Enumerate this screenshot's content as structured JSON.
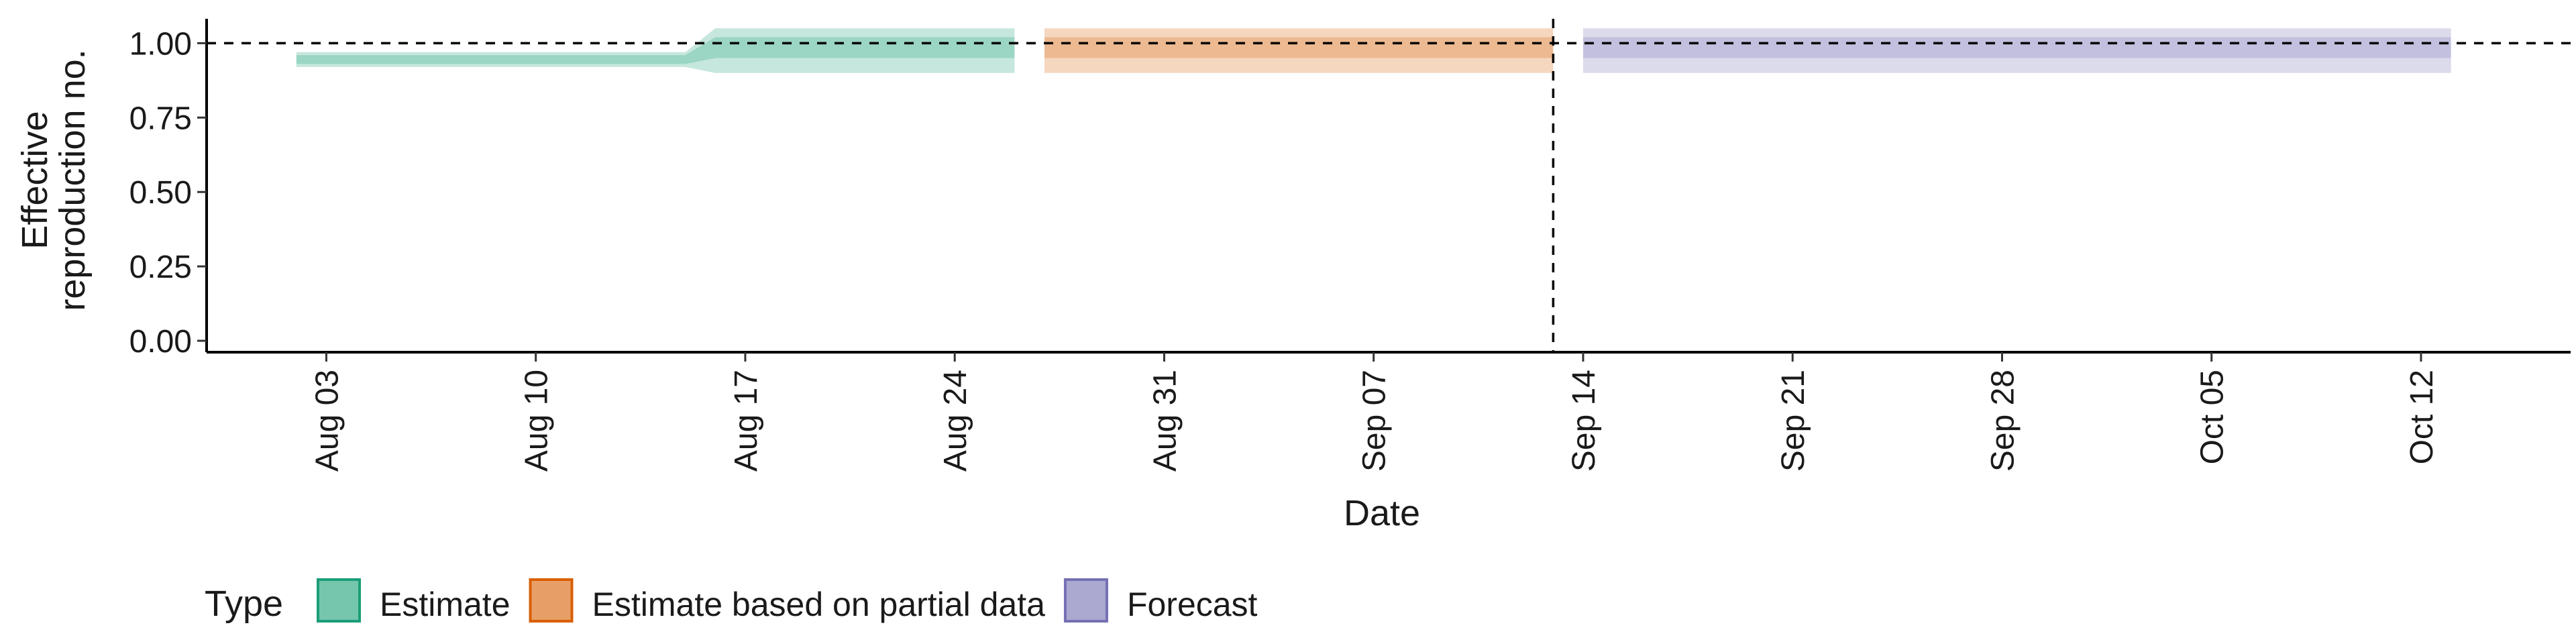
{
  "chart_data": {
    "type": "area",
    "title": "",
    "xlabel": "Date",
    "ylabel_lines": [
      "Effective",
      "reproduction no."
    ],
    "ylim": [
      0,
      1.1
    ],
    "yticks": [
      {
        "value": 0.0,
        "label": "0.00"
      },
      {
        "value": 0.25,
        "label": "0.25"
      },
      {
        "value": 0.5,
        "label": "0.50"
      },
      {
        "value": 0.75,
        "label": "0.75"
      },
      {
        "value": 1.0,
        "label": "1.00"
      }
    ],
    "xlim": [
      "2020-07-30",
      "2020-10-17"
    ],
    "xticks": [
      {
        "date": "2020-08-03",
        "label": "Aug 03"
      },
      {
        "date": "2020-08-10",
        "label": "Aug 10"
      },
      {
        "date": "2020-08-17",
        "label": "Aug 17"
      },
      {
        "date": "2020-08-24",
        "label": "Aug 24"
      },
      {
        "date": "2020-08-31",
        "label": "Aug 31"
      },
      {
        "date": "2020-09-07",
        "label": "Sep 07"
      },
      {
        "date": "2020-09-14",
        "label": "Sep 14"
      },
      {
        "date": "2020-09-21",
        "label": "Sep 21"
      },
      {
        "date": "2020-09-28",
        "label": "Sep 28"
      },
      {
        "date": "2020-10-05",
        "label": "Oct 05"
      },
      {
        "date": "2020-10-12",
        "label": "Oct 12"
      }
    ],
    "reference_hline": 1.0,
    "reference_vline": "2020-09-13",
    "grid": false,
    "legend": {
      "title": "Type",
      "position": "bottom-left",
      "entries": [
        {
          "name": "Estimate",
          "fill": "#1b9e77",
          "stroke": "#1b9e77"
        },
        {
          "name": "Estimate based on partial data",
          "fill": "#d95f02",
          "stroke": "#d95f02"
        },
        {
          "name": "Forecast",
          "fill": "#7570b3",
          "stroke": "#7570b3"
        }
      ]
    },
    "series": [
      {
        "name": "Estimate",
        "color": "#1b9e77",
        "x": [
          "2020-08-02",
          "2020-08-15",
          "2020-08-16",
          "2020-08-26"
        ],
        "inner_lower": [
          0.93,
          0.93,
          0.95,
          0.95
        ],
        "inner_upper": [
          0.96,
          0.96,
          1.02,
          1.02
        ],
        "outer_lower": [
          0.92,
          0.92,
          0.9,
          0.9
        ],
        "outer_upper": [
          0.97,
          0.97,
          1.05,
          1.05
        ]
      },
      {
        "name": "Estimate based on partial data",
        "color": "#d95f02",
        "x": [
          "2020-08-27",
          "2020-09-13"
        ],
        "inner_lower": [
          0.95,
          0.95
        ],
        "inner_upper": [
          1.02,
          1.02
        ],
        "outer_lower": [
          0.9,
          0.9
        ],
        "outer_upper": [
          1.05,
          1.05
        ]
      },
      {
        "name": "Forecast",
        "color": "#7570b3",
        "x": [
          "2020-09-14",
          "2020-10-13"
        ],
        "inner_lower": [
          0.95,
          0.95
        ],
        "inner_upper": [
          1.02,
          1.02
        ],
        "outer_lower": [
          0.9,
          0.9
        ],
        "outer_upper": [
          1.05,
          1.05
        ]
      }
    ]
  }
}
